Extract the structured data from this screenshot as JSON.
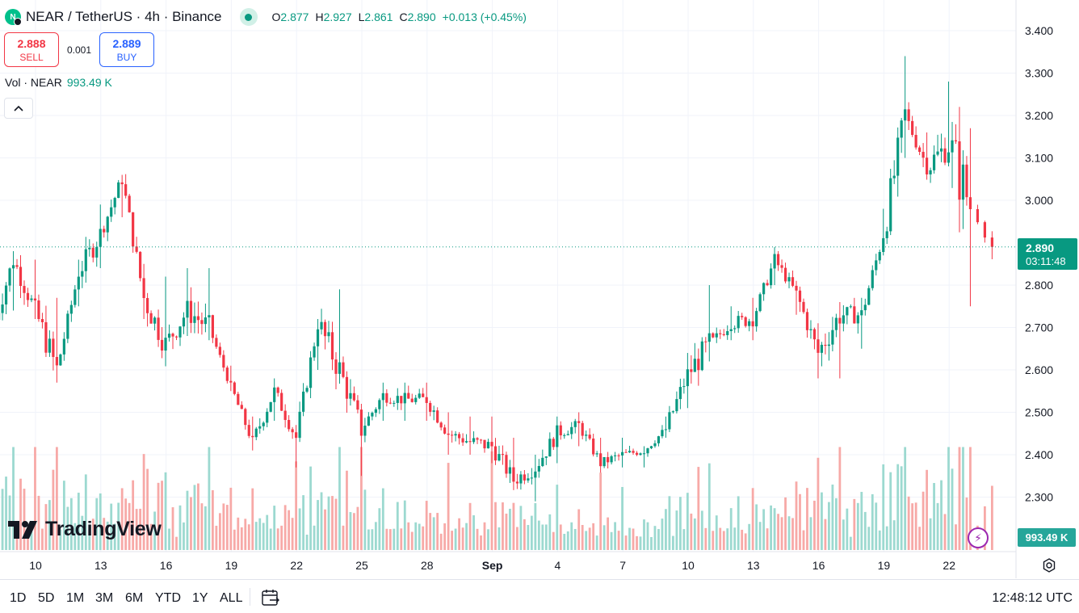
{
  "header": {
    "symbol_title": "NEAR / TetherUS · 4h · Binance",
    "logo_glyph": "N",
    "ohlc": {
      "o_label": "O",
      "o": "2.877",
      "h_label": "H",
      "h": "2.927",
      "l_label": "L",
      "l": "2.861",
      "c_label": "C",
      "c": "2.890",
      "change": "+0.013 (+0.45%)"
    }
  },
  "trade": {
    "sell_price": "2.888",
    "sell_label": "SELL",
    "spread": "0.001",
    "buy_price": "2.889",
    "buy_label": "BUY"
  },
  "volume_legend": {
    "label": "Vol · NEAR",
    "value": "993.49 K"
  },
  "price_axis": {
    "ticks": [
      "3.400",
      "3.300",
      "3.200",
      "3.100",
      "3.000",
      "2.800",
      "2.700",
      "2.600",
      "2.500",
      "2.400",
      "2.300"
    ],
    "current_price": "2.890",
    "countdown": "03:11:48",
    "volume_label": "993.49 K"
  },
  "time_axis": {
    "ticks": [
      "10",
      "13",
      "16",
      "19",
      "22",
      "25",
      "28",
      "Sep",
      "4",
      "7",
      "10",
      "13",
      "16",
      "19",
      "22"
    ]
  },
  "toolbar": {
    "timeframes": [
      "1D",
      "5D",
      "1M",
      "3M",
      "6M",
      "YTD",
      "1Y",
      "ALL"
    ],
    "clock": "12:48:12 UTC"
  },
  "branding": {
    "name": "TradingView"
  },
  "colors": {
    "up": "#089981",
    "down": "#f23645",
    "vol_up": "#9cd9d0",
    "vol_down": "#f7a9a7"
  },
  "chart_data": {
    "type": "candlestick",
    "y_range": [
      2.2,
      3.45
    ],
    "grid": true,
    "anchors": [
      {
        "x": "Aug 8",
        "close": 2.69,
        "high": 2.72,
        "low": 2.62
      },
      {
        "x": "Aug 9",
        "close": 2.86,
        "high": 2.88,
        "low": 2.74
      },
      {
        "x": "Aug 10",
        "close": 2.74,
        "high": 2.86,
        "low": 2.72
      },
      {
        "x": "Aug 11",
        "close": 2.6,
        "high": 2.77,
        "low": 2.57
      },
      {
        "x": "Aug 12",
        "close": 2.83,
        "high": 2.86,
        "low": 2.75
      },
      {
        "x": "Aug 13",
        "close": 2.92,
        "high": 2.99,
        "low": 2.84
      },
      {
        "x": "Aug 14",
        "close": 3.05,
        "high": 3.06,
        "low": 2.96
      },
      {
        "x": "Aug 15",
        "close": 2.77,
        "high": 2.85,
        "low": 2.72
      },
      {
        "x": "Aug 16",
        "close": 2.66,
        "high": 2.82,
        "low": 2.63
      },
      {
        "x": "Aug 17",
        "close": 2.74,
        "high": 2.84,
        "low": 2.68
      },
      {
        "x": "Aug 18",
        "close": 2.7,
        "high": 2.84,
        "low": 2.67
      },
      {
        "x": "Aug 19",
        "close": 2.56,
        "high": 2.61,
        "low": 2.55
      },
      {
        "x": "Aug 20",
        "close": 2.43,
        "high": 2.49,
        "low": 2.41
      },
      {
        "x": "Aug 21",
        "close": 2.55,
        "high": 2.58,
        "low": 2.48
      },
      {
        "x": "Aug 22",
        "close": 2.44,
        "high": 2.47,
        "low": 2.37
      },
      {
        "x": "Aug 23",
        "close": 2.71,
        "high": 2.72,
        "low": 2.6
      },
      {
        "x": "Aug 24",
        "close": 2.6,
        "high": 2.79,
        "low": 2.58
      },
      {
        "x": "Aug 25",
        "close": 2.46,
        "high": 2.52,
        "low": 2.35
      },
      {
        "x": "Aug 26",
        "close": 2.54,
        "high": 2.57,
        "low": 2.48
      },
      {
        "x": "Aug 27",
        "close": 2.53,
        "high": 2.57,
        "low": 2.48
      },
      {
        "x": "Aug 28",
        "close": 2.53,
        "high": 2.57,
        "low": 2.48
      },
      {
        "x": "Aug 29",
        "close": 2.45,
        "high": 2.5,
        "low": 2.4
      },
      {
        "x": "Aug 30",
        "close": 2.43,
        "high": 2.49,
        "low": 2.4
      },
      {
        "x": "Aug 31",
        "close": 2.42,
        "high": 2.49,
        "low": 2.38
      },
      {
        "x": "Sep 1",
        "close": 2.34,
        "high": 2.44,
        "low": 2.32
      },
      {
        "x": "Sep 2",
        "close": 2.37,
        "high": 2.4,
        "low": 2.29
      },
      {
        "x": "Sep 3",
        "close": 2.45,
        "high": 2.49,
        "low": 2.38
      },
      {
        "x": "Sep 4",
        "close": 2.47,
        "high": 2.5,
        "low": 2.42
      },
      {
        "x": "Sep 5",
        "close": 2.38,
        "high": 2.44,
        "low": 2.36
      },
      {
        "x": "Sep 6",
        "close": 2.4,
        "high": 2.44,
        "low": 2.37
      },
      {
        "x": "Sep 7",
        "close": 2.41,
        "high": 2.42,
        "low": 2.37
      },
      {
        "x": "Sep 8",
        "close": 2.46,
        "high": 2.49,
        "low": 2.44
      },
      {
        "x": "Sep 9",
        "close": 2.59,
        "high": 2.64,
        "low": 2.51
      },
      {
        "x": "Sep 10",
        "close": 2.66,
        "high": 2.8,
        "low": 2.62
      },
      {
        "x": "Sep 11",
        "close": 2.71,
        "high": 2.75,
        "low": 2.67
      },
      {
        "x": "Sep 12",
        "close": 2.72,
        "high": 2.77,
        "low": 2.67
      },
      {
        "x": "Sep 13",
        "close": 2.86,
        "high": 2.89,
        "low": 2.8
      },
      {
        "x": "Sep 14",
        "close": 2.78,
        "high": 2.81,
        "low": 2.73
      },
      {
        "x": "Sep 15",
        "close": 2.64,
        "high": 2.71,
        "low": 2.58
      },
      {
        "x": "Sep 16",
        "close": 2.73,
        "high": 2.76,
        "low": 2.58
      },
      {
        "x": "Sep 17",
        "close": 2.73,
        "high": 2.77,
        "low": 2.65
      },
      {
        "x": "Sep 18",
        "close": 2.92,
        "high": 2.98,
        "low": 2.87
      },
      {
        "x": "Sep 19",
        "close": 3.2,
        "high": 3.34,
        "low": 3.1
      },
      {
        "x": "Sep 20",
        "close": 3.08,
        "high": 3.16,
        "low": 3.05
      },
      {
        "x": "Sep 21",
        "close": 3.13,
        "high": 3.28,
        "low": 3.08
      },
      {
        "x": "Sep 22",
        "close": 2.99,
        "high": 3.17,
        "low": 2.75
      },
      {
        "x": "Sep 22 12:00",
        "close": 2.89,
        "high": 2.927,
        "low": 2.861
      }
    ],
    "volume_max_k": 1600
  }
}
